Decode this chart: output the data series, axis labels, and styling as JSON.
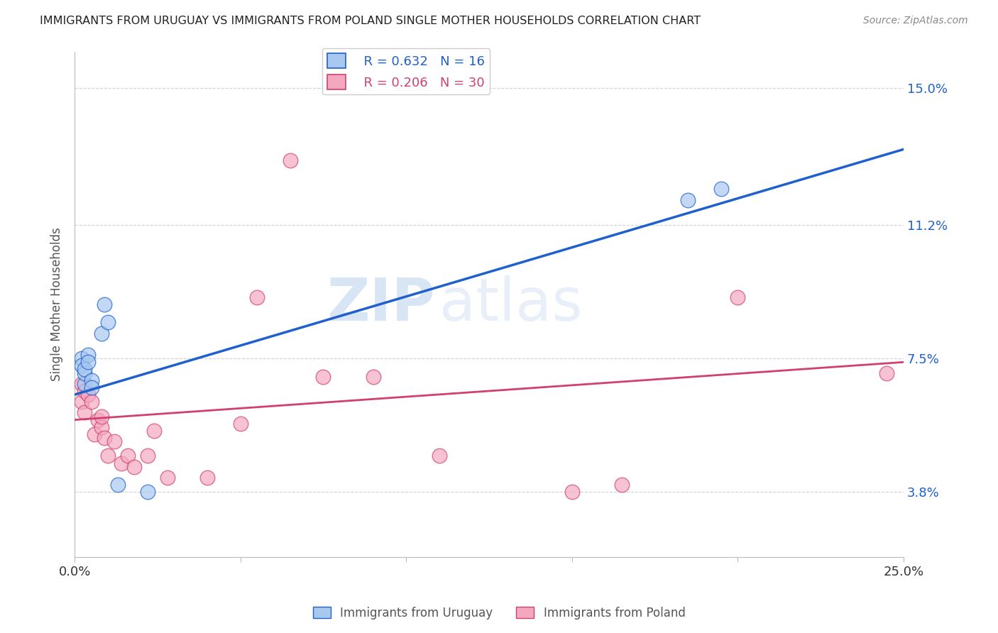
{
  "title": "IMMIGRANTS FROM URUGUAY VS IMMIGRANTS FROM POLAND SINGLE MOTHER HOUSEHOLDS CORRELATION CHART",
  "source": "Source: ZipAtlas.com",
  "ylabel": "Single Mother Households",
  "xlim": [
    0.0,
    0.25
  ],
  "ylim": [
    0.02,
    0.16
  ],
  "ytick_labels_right": [
    "3.8%",
    "7.5%",
    "11.2%",
    "15.0%"
  ],
  "ytick_values_right": [
    0.038,
    0.075,
    0.112,
    0.15
  ],
  "uruguay_color": "#a8c8f0",
  "poland_color": "#f4a8c0",
  "uruguay_R": 0.632,
  "uruguay_N": 16,
  "poland_R": 0.206,
  "poland_N": 30,
  "line_uruguay_color": "#2060cc",
  "line_poland_color": "#d04070",
  "watermark_part1": "ZIP",
  "watermark_part2": "atlas",
  "uruguay_points_x": [
    0.002,
    0.002,
    0.003,
    0.003,
    0.003,
    0.004,
    0.004,
    0.005,
    0.005,
    0.008,
    0.009,
    0.01,
    0.013,
    0.022,
    0.185,
    0.195
  ],
  "uruguay_points_y": [
    0.075,
    0.073,
    0.068,
    0.071,
    0.072,
    0.076,
    0.074,
    0.069,
    0.067,
    0.082,
    0.09,
    0.085,
    0.04,
    0.038,
    0.119,
    0.122
  ],
  "poland_points_x": [
    0.002,
    0.002,
    0.003,
    0.003,
    0.004,
    0.005,
    0.006,
    0.007,
    0.008,
    0.008,
    0.009,
    0.01,
    0.012,
    0.014,
    0.016,
    0.018,
    0.022,
    0.024,
    0.028,
    0.04,
    0.05,
    0.055,
    0.065,
    0.075,
    0.09,
    0.11,
    0.15,
    0.165,
    0.2,
    0.245
  ],
  "poland_points_y": [
    0.068,
    0.063,
    0.06,
    0.066,
    0.065,
    0.063,
    0.054,
    0.058,
    0.056,
    0.059,
    0.053,
    0.048,
    0.052,
    0.046,
    0.048,
    0.045,
    0.048,
    0.055,
    0.042,
    0.042,
    0.057,
    0.092,
    0.13,
    0.07,
    0.07,
    0.048,
    0.038,
    0.04,
    0.092,
    0.071
  ],
  "line_uy_x0": 0.0,
  "line_uy_y0": 0.065,
  "line_uy_x1": 0.25,
  "line_uy_y1": 0.133,
  "line_pl_x0": 0.0,
  "line_pl_y0": 0.058,
  "line_pl_x1": 0.25,
  "line_pl_y1": 0.074
}
